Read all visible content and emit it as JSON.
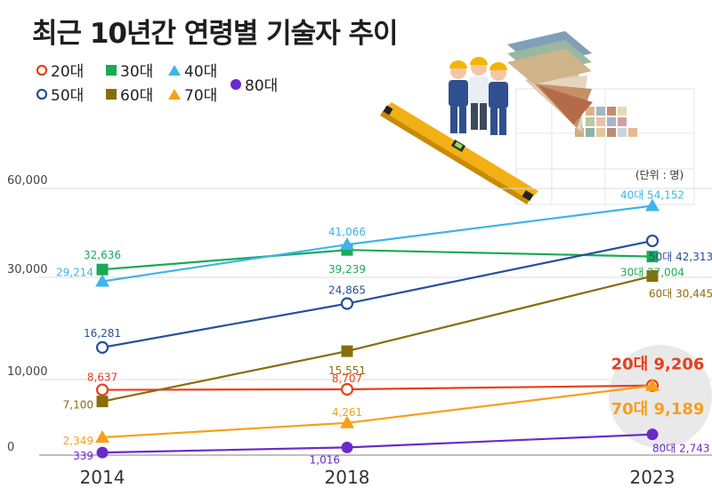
{
  "title": "최근 10년간 연령별 기술자 추이",
  "unit_label": "(단위 : 명)",
  "legend": [
    {
      "name": "20대",
      "color": "#e8401c",
      "marker": "circle-open"
    },
    {
      "name": "30대",
      "color": "#1aaa55",
      "marker": "square"
    },
    {
      "name": "40대",
      "color": "#3fb4e8",
      "marker": "triangle"
    },
    {
      "name": "50대",
      "color": "#274e9c",
      "marker": "circle-open"
    },
    {
      "name": "60대",
      "color": "#8a6d0a",
      "marker": "square"
    },
    {
      "name": "70대",
      "color": "#f5a01a",
      "marker": "triangle"
    },
    {
      "name": "80대",
      "color": "#6a2bc8",
      "marker": "circle"
    }
  ],
  "chart_data": {
    "type": "line",
    "categories": [
      "2014",
      "2018",
      "2023"
    ],
    "y_ticks": [
      "60,000",
      "30,000",
      "10,000",
      "0"
    ],
    "grid": true,
    "series": [
      {
        "name": "20대",
        "values": [
          8637,
          8707,
          9206
        ],
        "labels": [
          "8,637",
          "8,707",
          "20대 9,206"
        ]
      },
      {
        "name": "30대",
        "values": [
          32636,
          39239,
          37004
        ],
        "labels": [
          "32,636",
          "39,239",
          "30대 37,004"
        ]
      },
      {
        "name": "40대",
        "values": [
          29214,
          41066,
          54152
        ],
        "labels": [
          "29,214",
          "41,066",
          "40대 54,152"
        ]
      },
      {
        "name": "50대",
        "values": [
          16281,
          24865,
          42313
        ],
        "labels": [
          "16,281",
          "24,865",
          "50대 42,313"
        ]
      },
      {
        "name": "60대",
        "values": [
          7100,
          15551,
          30445
        ],
        "labels": [
          "7,100",
          "15,551",
          "60대 30,445"
        ]
      },
      {
        "name": "70대",
        "values": [
          2349,
          4261,
          9189
        ],
        "labels": [
          "2,349",
          "4,261",
          "70대 9,189"
        ]
      },
      {
        "name": "80대",
        "values": [
          339,
          1016,
          2743
        ],
        "labels": [
          "339",
          "1,016",
          "80대 2,743"
        ]
      }
    ]
  }
}
